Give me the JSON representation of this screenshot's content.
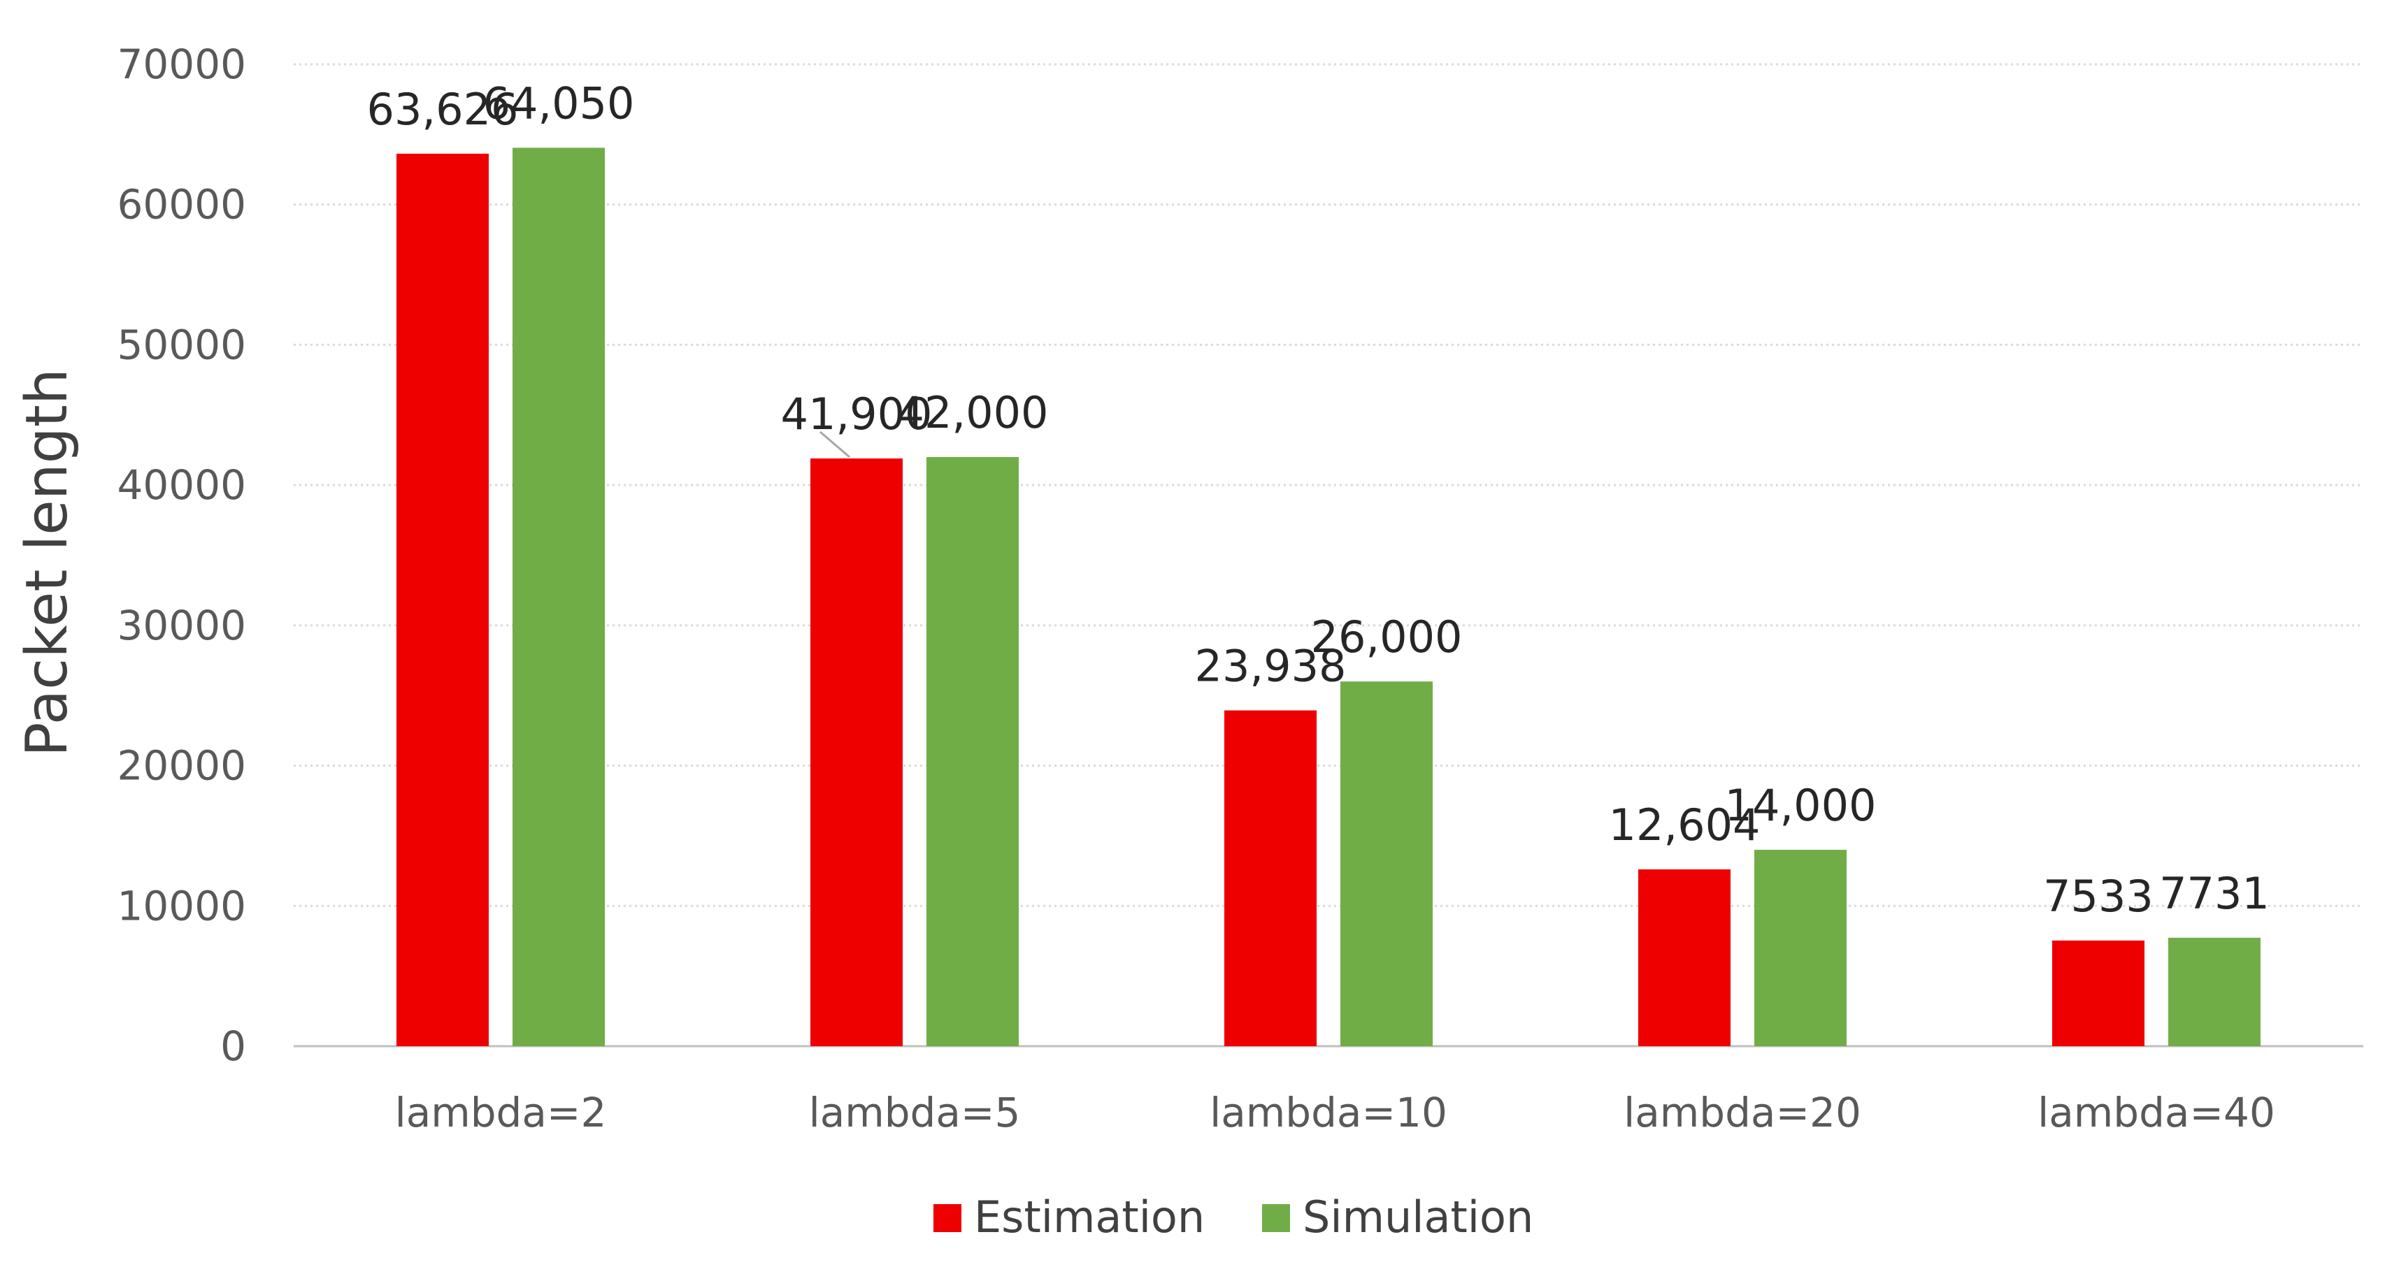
{
  "chart_data": {
    "type": "bar",
    "title": "",
    "xlabel": "",
    "ylabel": "Packet length",
    "ylim": [
      0,
      70000
    ],
    "yticks": [
      0,
      10000,
      20000,
      30000,
      40000,
      50000,
      60000,
      70000
    ],
    "ytick_labels": [
      "0",
      "10000",
      "20000",
      "30000",
      "40000",
      "50000",
      "60000",
      "70000"
    ],
    "grid": true,
    "legend_position": "bottom",
    "categories": [
      "lambda=2",
      "lambda=5",
      "lambda=10",
      "lambda=20",
      "lambda=40"
    ],
    "series": [
      {
        "name": "Estimation",
        "color": "#ee0000",
        "values": [
          63626,
          41900,
          23938,
          12604,
          7533
        ],
        "labels": [
          "63,626",
          "41,900",
          "23,938",
          "12,604",
          "7533"
        ]
      },
      {
        "name": "Simulation",
        "color": "#70ad47",
        "values": [
          64050,
          42000,
          26000,
          14000,
          7731
        ],
        "labels": [
          "64,050",
          "42,000",
          "26,000",
          "14,000",
          "7731"
        ]
      }
    ]
  }
}
